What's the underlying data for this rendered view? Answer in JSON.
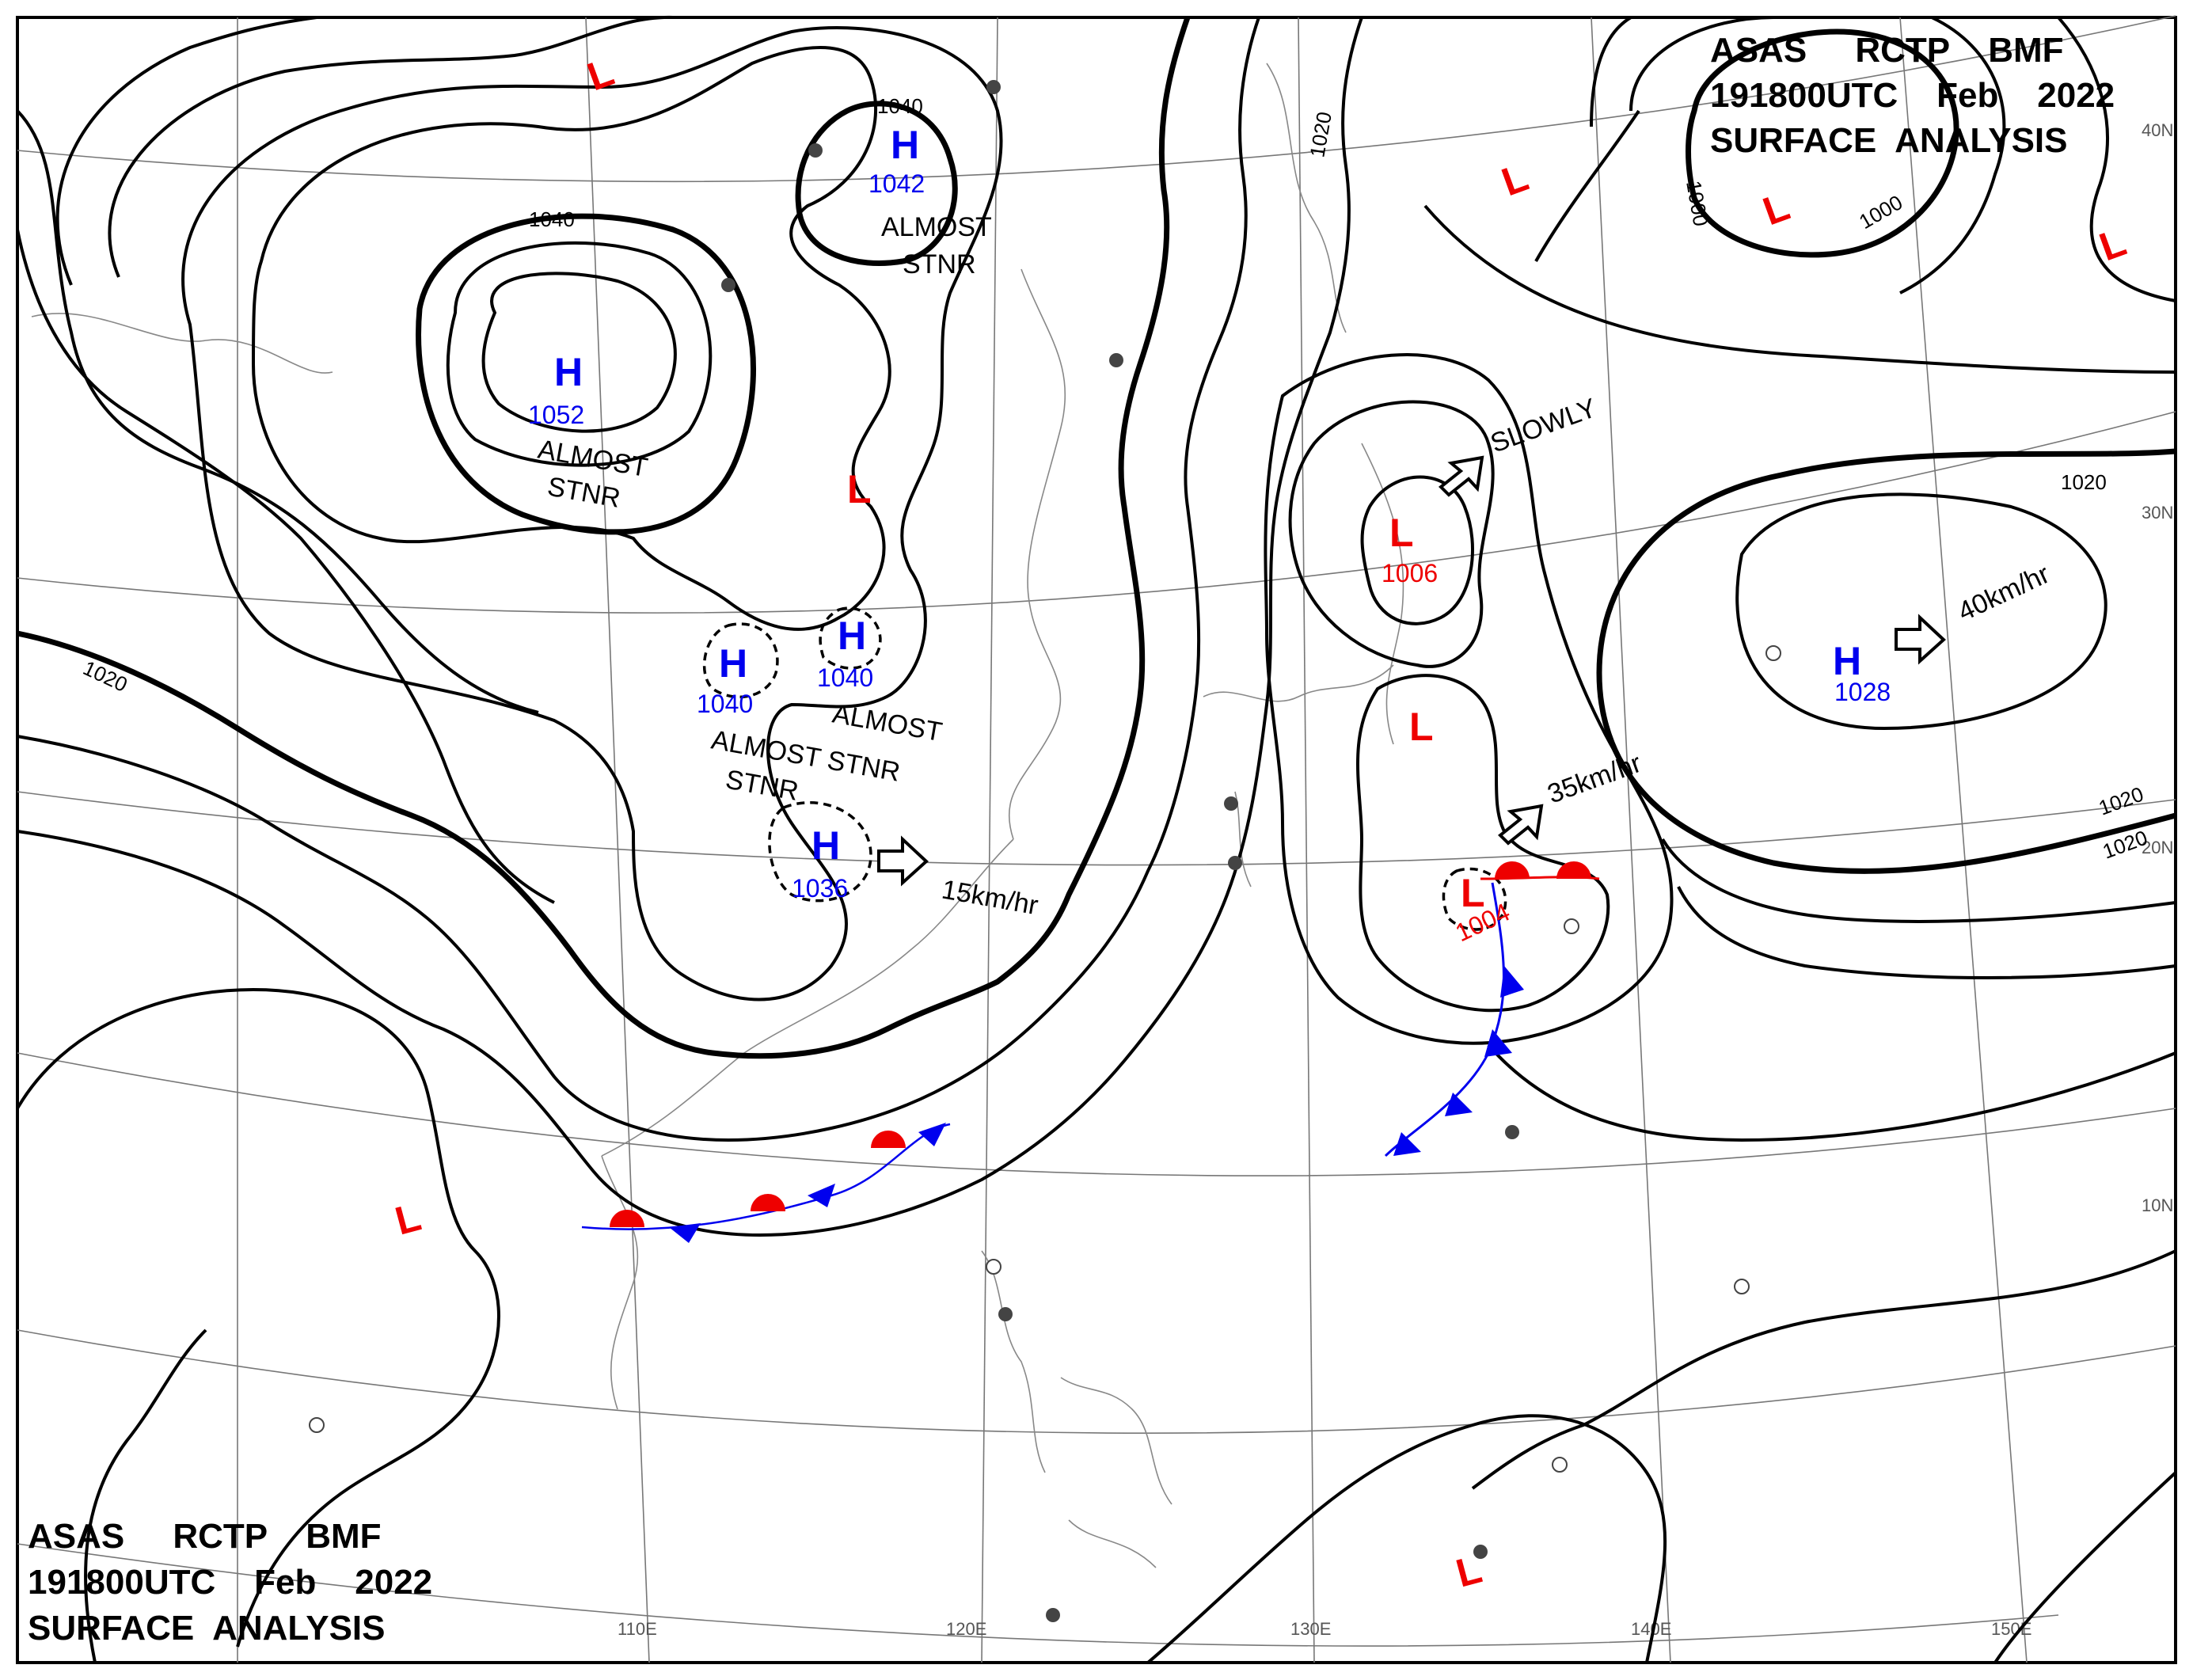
{
  "header_top": {
    "line1": "ASAS     RCTP    BMF",
    "line2": "191800UTC    Feb    2022",
    "line3": "SURFACE  ANALYSIS"
  },
  "header_bottom": {
    "line1": "ASAS     RCTP    BMF",
    "line2": "191800UTC    Feb    2022",
    "line3": "SURFACE  ANALYSIS"
  },
  "colors": {
    "high": "#0000ee",
    "low": "#ee0000",
    "isobar": "#000000",
    "grid": "#777777"
  },
  "pressure_centers": [
    {
      "type": "H",
      "value": "1052"
    },
    {
      "type": "H",
      "value": "1042"
    },
    {
      "type": "H",
      "value": "1040"
    },
    {
      "type": "H",
      "value": "1040"
    },
    {
      "type": "H",
      "value": "1036"
    },
    {
      "type": "H",
      "value": "1028"
    },
    {
      "type": "L",
      "value": "1006"
    },
    {
      "type": "L",
      "value": "1004"
    },
    {
      "type": "L",
      "value": ""
    },
    {
      "type": "L",
      "value": ""
    },
    {
      "type": "L",
      "value": ""
    },
    {
      "type": "L",
      "value": ""
    },
    {
      "type": "L",
      "value": ""
    },
    {
      "type": "L",
      "value": ""
    },
    {
      "type": "L",
      "value": ""
    }
  ],
  "isobar_labels": [
    "1040",
    "1040",
    "1020",
    "1020",
    "1020",
    "1000",
    "1000",
    "1020",
    "1020"
  ],
  "notes": {
    "stnr_1042": [
      "ALMOST",
      "STNR"
    ],
    "stnr_1052": [
      "ALMOST",
      "STNR"
    ],
    "stnr_1040a": [
      "ALMOST",
      "STNR"
    ],
    "stnr_1040b": [
      "ALMOST STNR"
    ],
    "slowly": "SLOWLY",
    "speed_1036": "15km/hr",
    "speed_1028": "40km/hr",
    "speed_low": "35km/hr"
  },
  "grid_labels": {
    "lon": [
      "110E",
      "120E",
      "130E",
      "140E",
      "150E"
    ],
    "lat": [
      "40N",
      "30N",
      "20N",
      "10N"
    ]
  },
  "fronts": [
    {
      "type": "stationary",
      "region": "South China Sea coast"
    },
    {
      "type": "warm",
      "region": "east of Taiwan"
    },
    {
      "type": "cold",
      "region": "south of low 1004"
    }
  ]
}
